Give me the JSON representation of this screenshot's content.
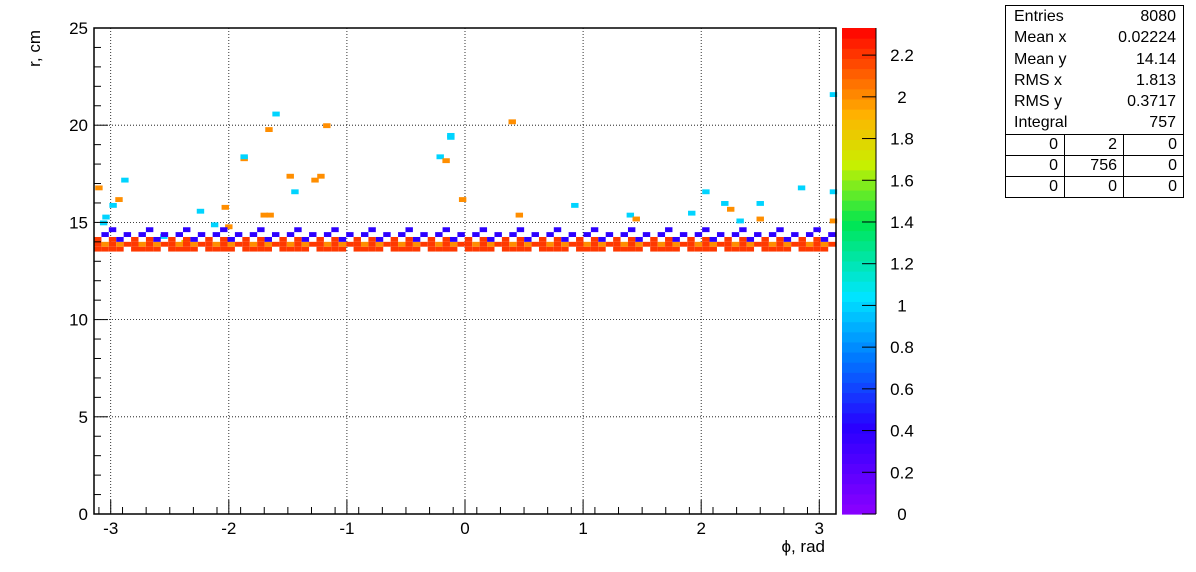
{
  "chart_data": {
    "type": "heatmap",
    "xlabel": "ϕ, rad",
    "ylabel": "r, cm",
    "xlim": [
      -3.1416,
      3.1416
    ],
    "ylim": [
      0,
      25
    ],
    "x_ticks": [
      -3,
      -2,
      -1,
      0,
      1,
      2,
      3
    ],
    "y_ticks": [
      0,
      5,
      10,
      15,
      20,
      25
    ],
    "z_ticks": [
      0,
      0.2,
      0.4,
      0.6,
      0.8,
      1,
      1.2,
      1.4,
      1.6,
      1.8,
      2,
      2.2
    ],
    "zlim": [
      0,
      2.33
    ],
    "grid": true,
    "palette": "rainbow",
    "bins": {
      "phi_width": 0.0628,
      "r_width": 0.25,
      "note_units": "rad, cm"
    },
    "band": {
      "r_rows": [
        13.75,
        14.0,
        14.25,
        14.5,
        14.75
      ],
      "phi_range": [
        -3.1416,
        3.1416
      ]
    },
    "cells": [
      [
        -3.1,
        16.9,
        2
      ],
      [
        -3.04,
        15.4,
        1
      ],
      [
        -3.06,
        15.1,
        1
      ],
      [
        -2.98,
        16.0,
        1
      ],
      [
        -2.93,
        16.3,
        2
      ],
      [
        -2.88,
        17.3,
        1
      ],
      [
        -2.55,
        14.4,
        1
      ],
      [
        -2.37,
        14.1,
        1.8
      ],
      [
        -2.24,
        15.7,
        1
      ],
      [
        -2.12,
        15.0,
        1
      ],
      [
        -2.03,
        15.9,
        2
      ],
      [
        -2.0,
        14.9,
        2
      ],
      [
        -1.87,
        18.4,
        2
      ],
      [
        -1.87,
        18.5,
        1
      ],
      [
        -1.7,
        15.5,
        2
      ],
      [
        -1.65,
        15.5,
        2
      ],
      [
        -1.66,
        19.9,
        2
      ],
      [
        -1.6,
        20.7,
        1
      ],
      [
        -1.48,
        17.5,
        2
      ],
      [
        -1.44,
        16.7,
        1
      ],
      [
        -1.27,
        17.3,
        2
      ],
      [
        -1.22,
        17.5,
        2
      ],
      [
        -1.17,
        20.1,
        2
      ],
      [
        -0.21,
        18.5,
        1
      ],
      [
        -0.16,
        18.3,
        2
      ],
      [
        -0.12,
        19.5,
        1
      ],
      [
        -0.12,
        19.6,
        1
      ],
      [
        -0.02,
        16.3,
        2
      ],
      [
        0.4,
        20.3,
        2
      ],
      [
        0.46,
        15.5,
        2
      ],
      [
        0.93,
        16.0,
        1
      ],
      [
        1.4,
        15.5,
        1
      ],
      [
        1.45,
        15.3,
        2
      ],
      [
        1.92,
        15.6,
        1
      ],
      [
        2.04,
        16.7,
        1
      ],
      [
        2.2,
        16.1,
        1
      ],
      [
        2.25,
        15.8,
        2
      ],
      [
        2.33,
        15.2,
        1
      ],
      [
        2.5,
        16.1,
        1
      ],
      [
        2.5,
        15.3,
        2
      ],
      [
        2.85,
        16.9,
        1
      ],
      [
        3.12,
        16.7,
        1
      ],
      [
        3.12,
        21.7,
        1
      ],
      [
        3.12,
        15.2,
        2
      ]
    ]
  },
  "stats": {
    "title_rows": [
      {
        "label": "Entries",
        "value": "8080"
      },
      {
        "label": "Mean x",
        "value": "0.02224"
      },
      {
        "label": "Mean y",
        "value": "14.14"
      },
      {
        "label": "RMS x",
        "value": "1.813"
      },
      {
        "label": "RMS y",
        "value": "0.3717"
      },
      {
        "label": "Integral",
        "value": "757"
      }
    ],
    "grid": [
      [
        "0",
        "2",
        "0"
      ],
      [
        "0",
        "756",
        "0"
      ],
      [
        "0",
        "0",
        "0"
      ]
    ]
  }
}
